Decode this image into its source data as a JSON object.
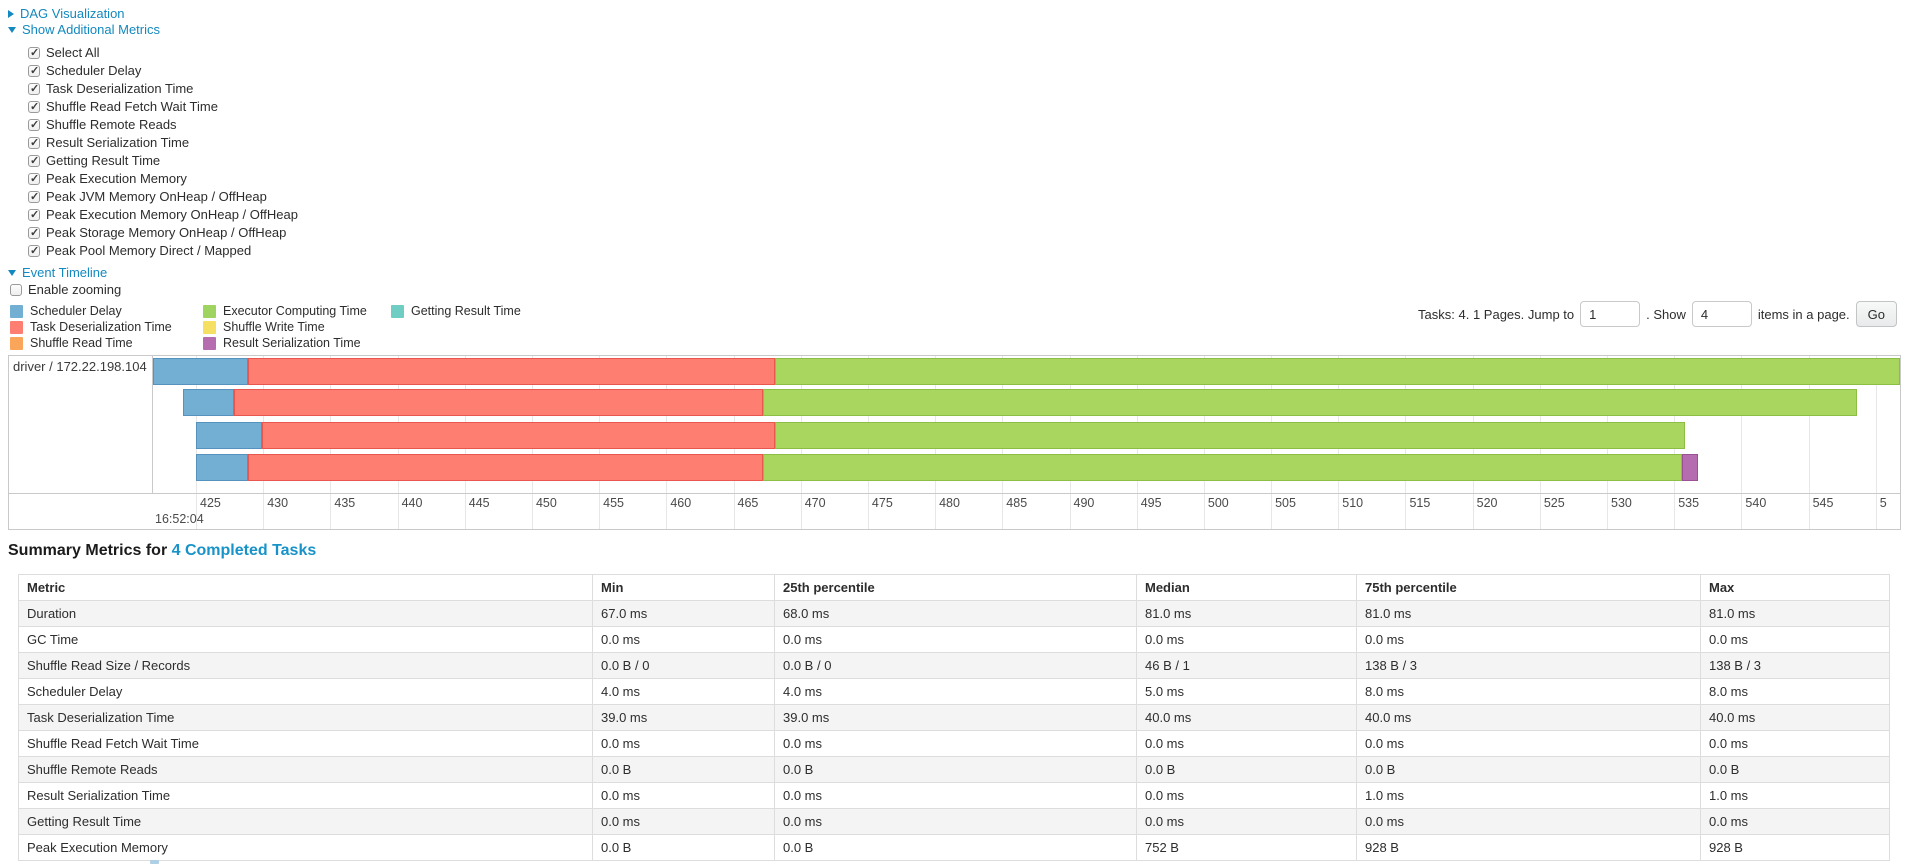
{
  "links": {
    "dag": "DAG Visualization",
    "additional_metrics": "Show Additional Metrics",
    "event_timeline": "Event Timeline"
  },
  "enable_zooming": {
    "label": "Enable zooming",
    "checked": false
  },
  "metric_checkboxes": [
    {
      "label": "Select All",
      "checked": true
    },
    {
      "label": "Scheduler Delay",
      "checked": true
    },
    {
      "label": "Task Deserialization Time",
      "checked": true
    },
    {
      "label": "Shuffle Read Fetch Wait Time",
      "checked": true
    },
    {
      "label": "Shuffle Remote Reads",
      "checked": true
    },
    {
      "label": "Result Serialization Time",
      "checked": true
    },
    {
      "label": "Getting Result Time",
      "checked": true
    },
    {
      "label": "Peak Execution Memory",
      "checked": true
    },
    {
      "label": "Peak JVM Memory OnHeap / OffHeap",
      "checked": true
    },
    {
      "label": "Peak Execution Memory OnHeap / OffHeap",
      "checked": true
    },
    {
      "label": "Peak Storage Memory OnHeap / OffHeap",
      "checked": true
    },
    {
      "label": "Peak Pool Memory Direct / Mapped",
      "checked": true
    }
  ],
  "legend": {
    "columns": [
      [
        {
          "name": "scheduler-delay",
          "label": "Scheduler Delay",
          "color": "#72AFD3"
        },
        {
          "name": "task-deserialization-time",
          "label": "Task Deserialization Time",
          "color": "#FF7E72"
        },
        {
          "name": "shuffle-read-time",
          "label": "Shuffle Read Time",
          "color": "#F9A65A"
        }
      ],
      [
        {
          "name": "executor-computing-time",
          "label": "Executor Computing Time",
          "color": "#9ED45F"
        },
        {
          "name": "shuffle-write-time",
          "label": "Shuffle Write Time",
          "color": "#F5E063"
        },
        {
          "name": "result-serialization-time",
          "label": "Result Serialization Time",
          "color": "#B56DB0"
        }
      ],
      [
        {
          "name": "getting-result-time",
          "label": "Getting Result Time",
          "color": "#6FCDC3"
        }
      ]
    ]
  },
  "pagination": {
    "prefix": "Tasks: 4. 1 Pages. Jump to",
    "jump_value": "1",
    "mid": ". Show",
    "show_value": "4",
    "suffix": "items in a page.",
    "go_label": "Go"
  },
  "chart_data": {
    "type": "timeline",
    "group_label": "driver / 172.22.198.104",
    "x_min": 421.8,
    "x_max": 551.8,
    "major_label": "16:52:04",
    "ticks": [
      {
        "v": 425,
        "label": "425"
      },
      {
        "v": 430,
        "label": "430"
      },
      {
        "v": 435,
        "label": "435"
      },
      {
        "v": 440,
        "label": "440"
      },
      {
        "v": 445,
        "label": "445"
      },
      {
        "v": 450,
        "label": "450"
      },
      {
        "v": 455,
        "label": "455"
      },
      {
        "v": 460,
        "label": "460"
      },
      {
        "v": 465,
        "label": "465"
      },
      {
        "v": 470,
        "label": "470"
      },
      {
        "v": 475,
        "label": "475"
      },
      {
        "v": 480,
        "label": "480"
      },
      {
        "v": 485,
        "label": "485"
      },
      {
        "v": 490,
        "label": "490"
      },
      {
        "v": 495,
        "label": "495"
      },
      {
        "v": 500,
        "label": "500"
      },
      {
        "v": 505,
        "label": "505"
      },
      {
        "v": 510,
        "label": "510"
      },
      {
        "v": 515,
        "label": "515"
      },
      {
        "v": 520,
        "label": "520"
      },
      {
        "v": 525,
        "label": "525"
      },
      {
        "v": 530,
        "label": "530"
      },
      {
        "v": 535,
        "label": "535"
      },
      {
        "v": 540,
        "label": "540"
      },
      {
        "v": 545,
        "label": "545"
      },
      {
        "v": 550,
        "label": "5"
      }
    ],
    "segment_colors": {
      "scheduler-delay": {
        "fill": "#72AFD3",
        "border": "#5592BE"
      },
      "task-deserialization": {
        "fill": "#FF7E72",
        "border": "#E8564E"
      },
      "executor-computing": {
        "fill": "#A9D65E",
        "border": "#8CBE45"
      },
      "result-serialization": {
        "fill": "#B56DB0",
        "border": "#9A5295"
      }
    },
    "tasks": [
      {
        "segments": [
          {
            "name": "scheduler-delay",
            "from": 421.8,
            "to": 428.9
          },
          {
            "name": "task-deserialization",
            "from": 428.9,
            "to": 468.1
          },
          {
            "name": "executor-computing",
            "from": 468.1,
            "to": 551.8
          }
        ]
      },
      {
        "segments": [
          {
            "name": "scheduler-delay",
            "from": 424.0,
            "to": 427.8
          },
          {
            "name": "task-deserialization",
            "from": 427.8,
            "to": 467.2
          },
          {
            "name": "executor-computing",
            "from": 467.2,
            "to": 548.6
          }
        ]
      },
      {
        "segments": [
          {
            "name": "scheduler-delay",
            "from": 425.0,
            "to": 429.9
          },
          {
            "name": "task-deserialization",
            "from": 429.9,
            "to": 468.1
          },
          {
            "name": "executor-computing",
            "from": 468.1,
            "to": 535.8
          }
        ]
      },
      {
        "segments": [
          {
            "name": "scheduler-delay",
            "from": 425.0,
            "to": 428.9
          },
          {
            "name": "task-deserialization",
            "from": 428.9,
            "to": 467.2
          },
          {
            "name": "executor-computing",
            "from": 467.2,
            "to": 535.6
          },
          {
            "name": "result-serialization",
            "from": 535.6,
            "to": 536.8
          }
        ]
      }
    ]
  },
  "summary": {
    "title_prefix": "Summary Metrics for ",
    "title_link": "4 Completed Tasks",
    "columns": [
      "Metric",
      "Min",
      "25th percentile",
      "Median",
      "75th percentile",
      "Max"
    ],
    "rows": [
      [
        "Duration",
        "67.0 ms",
        "68.0 ms",
        "81.0 ms",
        "81.0 ms",
        "81.0 ms"
      ],
      [
        "GC Time",
        "0.0 ms",
        "0.0 ms",
        "0.0 ms",
        "0.0 ms",
        "0.0 ms"
      ],
      [
        "Shuffle Read Size / Records",
        "0.0 B / 0",
        "0.0 B / 0",
        "46 B / 1",
        "138 B / 3",
        "138 B / 3"
      ],
      [
        "Scheduler Delay",
        "4.0 ms",
        "4.0 ms",
        "5.0 ms",
        "8.0 ms",
        "8.0 ms"
      ],
      [
        "Task Deserialization Time",
        "39.0 ms",
        "39.0 ms",
        "40.0 ms",
        "40.0 ms",
        "40.0 ms"
      ],
      [
        "Shuffle Read Fetch Wait Time",
        "0.0 ms",
        "0.0 ms",
        "0.0 ms",
        "0.0 ms",
        "0.0 ms"
      ],
      [
        "Shuffle Remote Reads",
        "0.0 B",
        "0.0 B",
        "0.0 B",
        "0.0 B",
        "0.0 B"
      ],
      [
        "Result Serialization Time",
        "0.0 ms",
        "0.0 ms",
        "0.0 ms",
        "1.0 ms",
        "1.0 ms"
      ],
      [
        "Getting Result Time",
        "0.0 ms",
        "0.0 ms",
        "0.0 ms",
        "0.0 ms",
        "0.0 ms"
      ],
      [
        "Peak Execution Memory",
        "0.0 B",
        "0.0 B",
        "752 B",
        "928 B",
        "928 B"
      ]
    ]
  }
}
